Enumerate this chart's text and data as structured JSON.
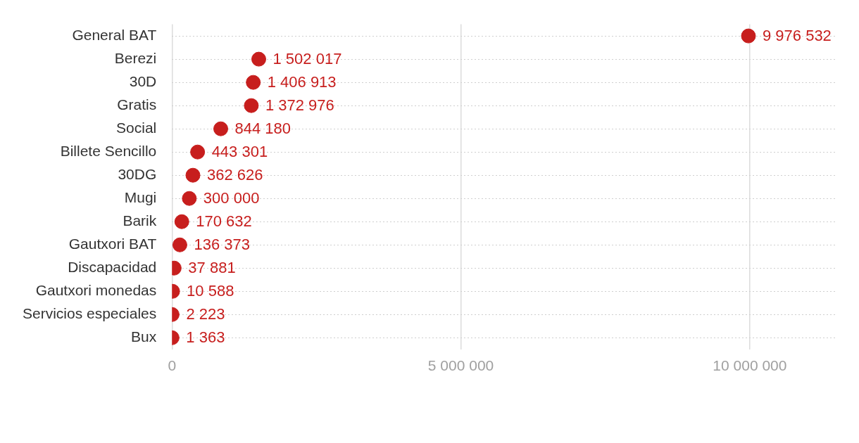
{
  "chart_data": {
    "type": "scatter",
    "orientation": "horizontal",
    "categories": [
      "General BAT",
      "Berezi",
      "30D",
      "Gratis",
      "Social",
      "Billete Sencillo",
      "30DG",
      "Mugi",
      "Barik",
      "Gautxori BAT",
      "Discapacidad",
      "Gautxori monedas",
      "Servicios especiales",
      "Bux"
    ],
    "series": [
      {
        "color": "#c71e1d",
        "values": [
          9976532,
          1502017,
          1406913,
          1372976,
          844180,
          443301,
          362626,
          300000,
          170632,
          136373,
          37881,
          10588,
          2223,
          1363
        ],
        "value_labels": [
          "9 976 532",
          "1 502 017",
          "1 406 913",
          "1 372 976",
          "844 180",
          "443 301",
          "362 626",
          "300 000",
          "170 632",
          "136 373",
          "37 881",
          "10 588",
          "2 223",
          "1 363"
        ]
      }
    ],
    "xlim": [
      0,
      11500000
    ],
    "xticks": [
      {
        "value": 0,
        "label": "0"
      },
      {
        "value": 5000000,
        "label": "5 000 000"
      },
      {
        "value": 10000000,
        "label": "10 000 000"
      }
    ],
    "grid": true,
    "marker": "circle",
    "legend": false
  }
}
